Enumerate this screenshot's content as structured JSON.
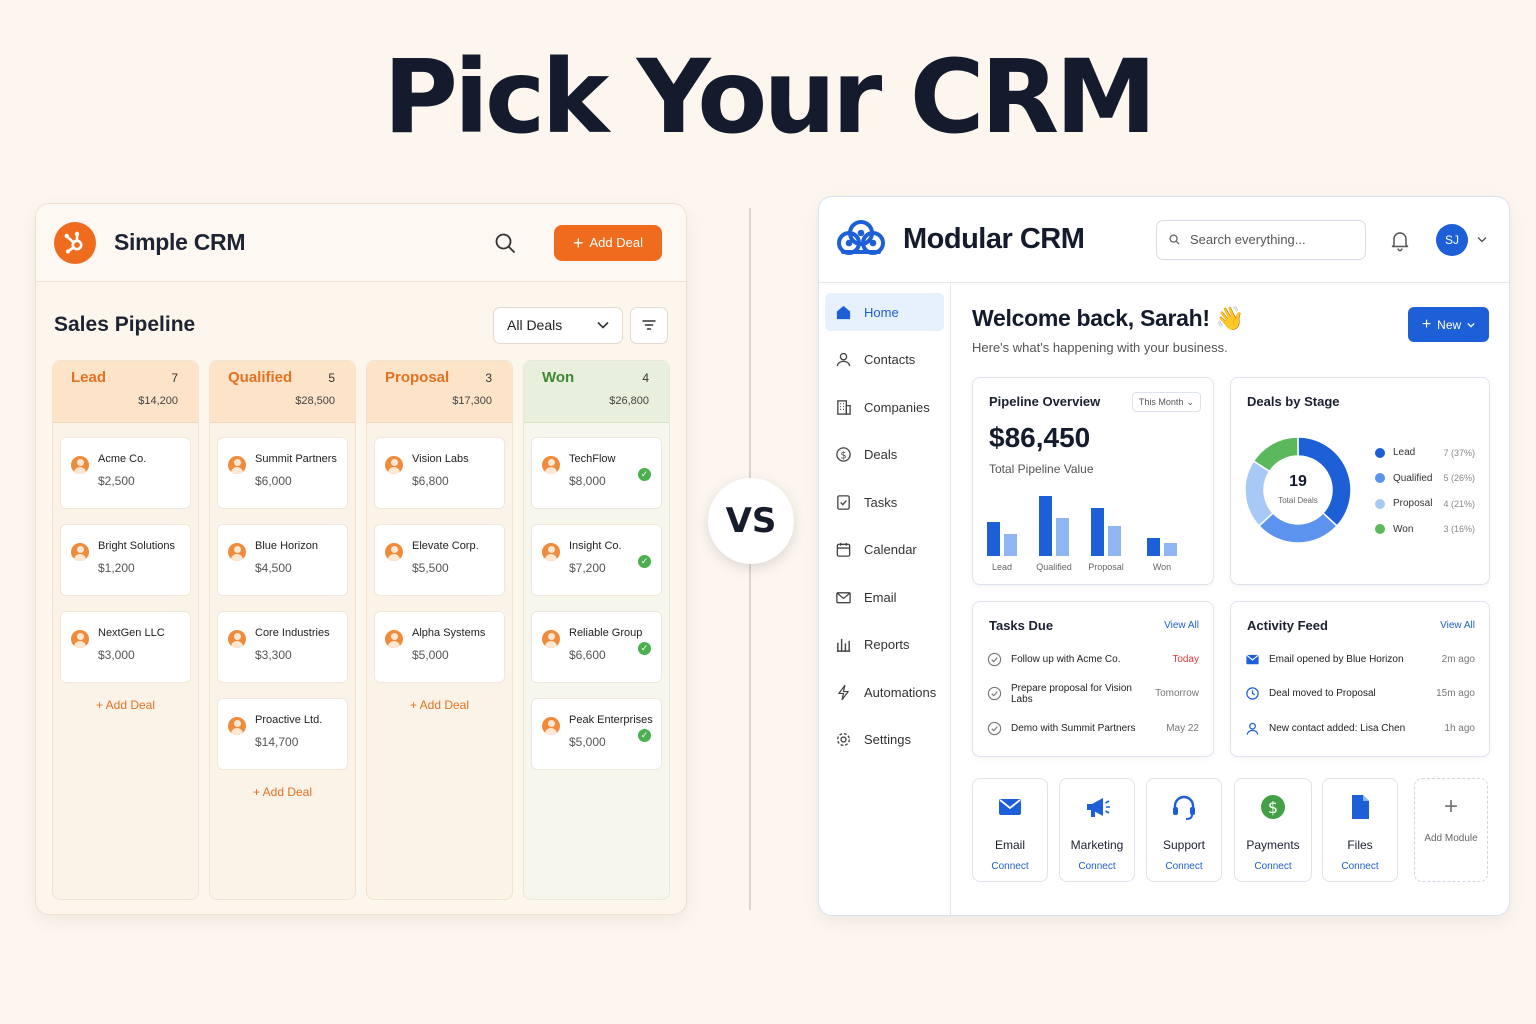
{
  "headline": "Pick Your CRM",
  "vs_label": "VS",
  "simple_crm": {
    "app_name": "Simple CRM",
    "add_deal_label": "Add Deal",
    "section_title": "Sales Pipeline",
    "filter_value": "All Deals",
    "columns": [
      {
        "name": "Lead",
        "count": "7",
        "total": "$14,200",
        "add_label": "Add Deal",
        "deals": [
          {
            "name": "Acme Co.",
            "value": "$2,500"
          },
          {
            "name": "Bright Solutions",
            "value": "$1,200"
          },
          {
            "name": "NextGen LLC",
            "value": "$3,000"
          }
        ]
      },
      {
        "name": "Qualified",
        "count": "5",
        "total": "$28,500",
        "add_label": "Add Deal",
        "deals": [
          {
            "name": "Summit Partners",
            "value": "$6,000"
          },
          {
            "name": "Blue Horizon",
            "value": "$4,500"
          },
          {
            "name": "Core Industries",
            "value": "$3,300"
          },
          {
            "name": "Proactive Ltd.",
            "value": "$14,700"
          }
        ]
      },
      {
        "name": "Proposal",
        "count": "3",
        "total": "$17,300",
        "add_label": "Add Deal",
        "deals": [
          {
            "name": "Vision Labs",
            "value": "$6,800"
          },
          {
            "name": "Elevate Corp.",
            "value": "$5,500"
          },
          {
            "name": "Alpha Systems",
            "value": "$5,000"
          }
        ]
      },
      {
        "name": "Won",
        "count": "4",
        "total": "$26,800",
        "deals": [
          {
            "name": "TechFlow",
            "value": "$8,000"
          },
          {
            "name": "Insight Co.",
            "value": "$7,200"
          },
          {
            "name": "Reliable Group",
            "value": "$6,600"
          },
          {
            "name": "Peak Enterprises",
            "value": "$5,000"
          }
        ]
      }
    ]
  },
  "modular_crm": {
    "app_name": "Modular CRM",
    "search_placeholder": "Search everything...",
    "avatar_initials": "SJ",
    "nav": [
      "Home",
      "Contacts",
      "Companies",
      "Deals",
      "Tasks",
      "Calendar",
      "Email",
      "Reports",
      "Automations",
      "Settings"
    ],
    "welcome": "Welcome back, Sarah! 👋",
    "welcome_sub": "Here's what's happening with your business.",
    "new_label": "New",
    "pipeline": {
      "title": "Pipeline Overview",
      "period": "This Month",
      "value": "$86,450",
      "value_label": "Total Pipeline Value",
      "chart_data": {
        "type": "bar",
        "categories": [
          "Lead",
          "Qualified",
          "Proposal",
          "Won"
        ],
        "series": [
          {
            "values": [
              34,
              60,
              48,
              18
            ],
            "color": "#1d5fd6"
          },
          {
            "values": [
              22,
              38,
              30,
              13
            ],
            "color": "#8fb6f2"
          }
        ]
      }
    },
    "stages": {
      "title": "Deals by Stage",
      "total": "19",
      "total_label": "Total Deals",
      "chart_data": {
        "type": "pie",
        "labels": [
          "Lead",
          "Qualified",
          "Proposal",
          "Won"
        ],
        "values": [
          7,
          5,
          4,
          3
        ],
        "display": [
          "7 (37%)",
          "5 (26%)",
          "4 (21%)",
          "3 (16%)"
        ],
        "colors": [
          "#1d5fd6",
          "#5b93ef",
          "#a8c8f6",
          "#5cb85c"
        ]
      }
    },
    "tasks": {
      "title": "Tasks Due",
      "link": "View All",
      "items": [
        {
          "text": "Follow up with Acme Co.",
          "due": "Today"
        },
        {
          "text": "Prepare proposal for Vision Labs",
          "due": "Tomorrow"
        },
        {
          "text": "Demo with Summit Partners",
          "due": "May 22"
        }
      ]
    },
    "activity": {
      "title": "Activity Feed",
      "link": "View All",
      "items": [
        {
          "text": "Email opened by Blue Horizon",
          "time": "2m ago"
        },
        {
          "text": "Deal moved to Proposal",
          "time": "15m ago"
        },
        {
          "text": "New contact added: Lisa Chen",
          "time": "1h ago"
        }
      ]
    },
    "modules": [
      {
        "name": "Email",
        "action": "Connect",
        "icon": "envelope-icon"
      },
      {
        "name": "Marketing",
        "action": "Connect",
        "icon": "megaphone-icon"
      },
      {
        "name": "Support",
        "action": "Connect",
        "icon": "headset-icon"
      },
      {
        "name": "Payments",
        "action": "Connect",
        "icon": "dollar-icon"
      },
      {
        "name": "Files",
        "action": "Connect",
        "icon": "file-icon"
      }
    ],
    "add_module_label": "Add Module"
  }
}
